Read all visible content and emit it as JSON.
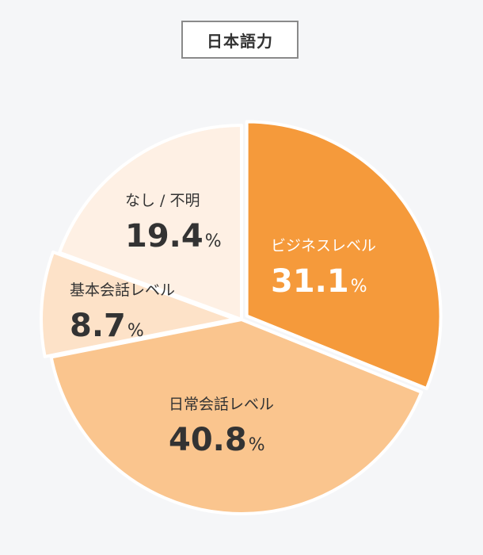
{
  "title": "日本語力",
  "chart_data": {
    "type": "pie",
    "title": "日本語力",
    "unit": "%",
    "slices": [
      {
        "label": "ビジネスレベル",
        "value": 31.1,
        "color": "#f59a3b",
        "text_color": "#ffffff"
      },
      {
        "label": "日常会話レベル",
        "value": 40.8,
        "color": "#fac58e",
        "text_color": "#333333"
      },
      {
        "label": "基本会話レベル",
        "value": 8.7,
        "color": "#fde2c8",
        "text_color": "#333333"
      },
      {
        "label": "なし / 不明",
        "value": 19.4,
        "color": "#fef0e4",
        "text_color": "#333333"
      }
    ]
  }
}
